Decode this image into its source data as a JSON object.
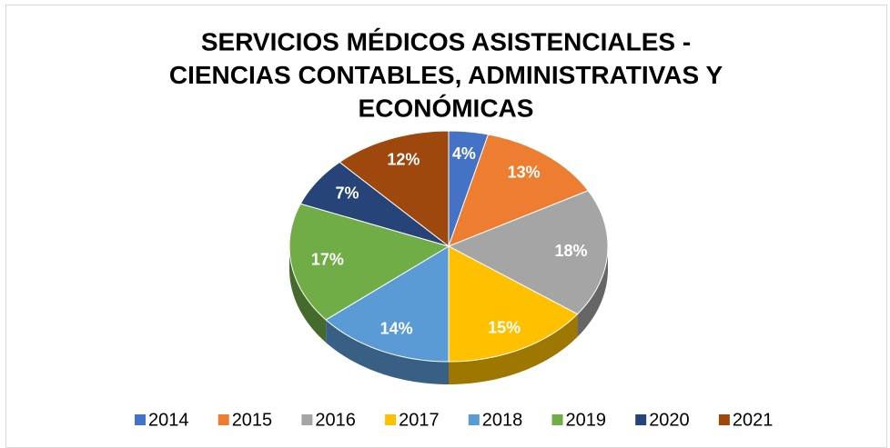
{
  "chart_data": {
    "type": "pie",
    "title_lines": [
      "SERVICIOS MÉDICOS ASISTENCIALES -",
      "CIENCIAS CONTABLES, ADMINISTRATIVAS Y",
      "ECONÓMICAS"
    ],
    "categories": [
      "2014",
      "2015",
      "2016",
      "2017",
      "2018",
      "2019",
      "2020",
      "2021"
    ],
    "values": [
      4,
      13,
      18,
      15,
      14,
      17,
      7,
      12
    ],
    "value_labels": [
      "4%",
      "13%",
      "18%",
      "15%",
      "14%",
      "17%",
      "7%",
      "12%"
    ],
    "colors": [
      "#4472c4",
      "#ed7d31",
      "#a5a5a5",
      "#ffc000",
      "#5b9bd5",
      "#70ad47",
      "#264478",
      "#9e480e"
    ],
    "legend": "bottom"
  }
}
